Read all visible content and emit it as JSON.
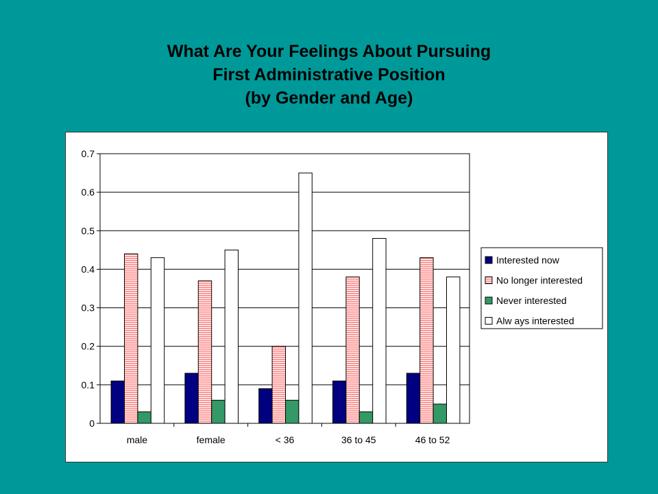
{
  "title": {
    "line1": "What Are Your Feelings About Pursuing",
    "line2": "First Administrative Position",
    "line3": "(by Gender and Age)"
  },
  "chart_data": {
    "type": "bar",
    "categories": [
      "male",
      "female",
      "< 36",
      "36 to 45",
      "46 to 52"
    ],
    "series": [
      {
        "name": "Interested now",
        "values": [
          0.11,
          0.13,
          0.09,
          0.11,
          0.13
        ],
        "color": "#000080",
        "pattern": "solid"
      },
      {
        "name": "No longer interested",
        "values": [
          0.44,
          0.37,
          0.2,
          0.38,
          0.43
        ],
        "color": "#ff9999",
        "pattern": "horizontal-stripes"
      },
      {
        "name": "Never interested",
        "values": [
          0.03,
          0.06,
          0.06,
          0.03,
          0.05
        ],
        "color": "#339966",
        "pattern": "solid"
      },
      {
        "name": "Alw ays interested",
        "values": [
          0.43,
          0.45,
          0.65,
          0.48,
          0.38
        ],
        "color": "#ffffff",
        "pattern": "solid"
      }
    ],
    "yticks": [
      "0",
      "0.1",
      "0.2",
      "0.3",
      "0.4",
      "0.5",
      "0.6",
      "0.7"
    ],
    "ylim": [
      0,
      0.7
    ],
    "grid": true,
    "legend": "right"
  }
}
